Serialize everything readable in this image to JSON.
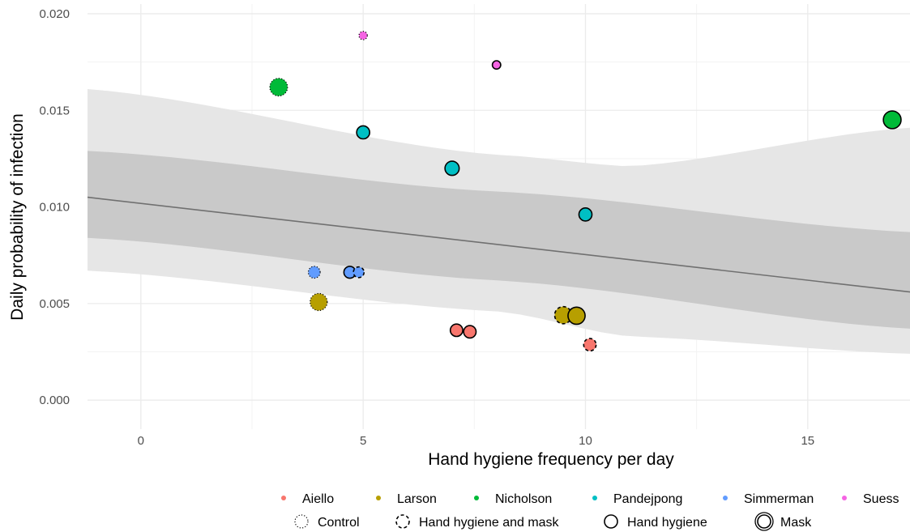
{
  "chart_data": {
    "type": "scatter",
    "title": "",
    "xlabel": "Hand hygiene frequency per day",
    "ylabel": "Daily probability of infection",
    "xlim": [
      -1.2,
      17.3
    ],
    "ylim": [
      -0.0015,
      0.0205
    ],
    "x_ticks": [
      0,
      5,
      10,
      15
    ],
    "x_tick_labels": [
      "0",
      "5",
      "10",
      "15"
    ],
    "y_ticks": [
      0.0,
      0.005,
      0.01,
      0.015,
      0.02
    ],
    "y_tick_labels": [
      "0.000",
      "0.005",
      "0.010",
      "0.015",
      "0.020"
    ],
    "grid": true,
    "legend_position": "bottom",
    "studies": [
      {
        "name": "Aiello",
        "color": "#F8766D"
      },
      {
        "name": "Larson",
        "color": "#B79F00"
      },
      {
        "name": "Nicholson",
        "color": "#00BA38"
      },
      {
        "name": "Pandejpong",
        "color": "#00BFC4"
      },
      {
        "name": "Simmerman",
        "color": "#619CFF"
      },
      {
        "name": "Suess",
        "color": "#F564E3"
      }
    ],
    "arms": [
      {
        "name": "Control",
        "border": "dotted"
      },
      {
        "name": "Hand hygiene and mask",
        "border": "dashed"
      },
      {
        "name": "Hand hygiene",
        "border": "solid"
      },
      {
        "name": "Mask",
        "border": "double"
      }
    ],
    "points": [
      {
        "study": "Aiello",
        "arm": "Hand hygiene",
        "x": 7.1,
        "y": 0.00362,
        "size": 1.3
      },
      {
        "study": "Aiello",
        "arm": "Hand hygiene",
        "x": 7.4,
        "y": 0.00354,
        "size": 1.3
      },
      {
        "study": "Aiello",
        "arm": "Hand hygiene and mask",
        "x": 10.1,
        "y": 0.00287,
        "size": 1.3
      },
      {
        "study": "Larson",
        "arm": "Control",
        "x": 4.0,
        "y": 0.00508,
        "size": 2.1
      },
      {
        "study": "Larson",
        "arm": "Hand hygiene and mask",
        "x": 9.5,
        "y": 0.0044,
        "size": 2.1
      },
      {
        "study": "Larson",
        "arm": "Hand hygiene",
        "x": 9.8,
        "y": 0.00437,
        "size": 2.1
      },
      {
        "study": "Nicholson",
        "arm": "Control",
        "x": 3.1,
        "y": 0.0162,
        "size": 2.2
      },
      {
        "study": "Nicholson",
        "arm": "Hand hygiene",
        "x": 16.9,
        "y": 0.01451,
        "size": 2.2
      },
      {
        "study": "Pandejpong",
        "arm": "Hand hygiene",
        "x": 5.0,
        "y": 0.01386,
        "size": 1.4
      },
      {
        "study": "Pandejpong",
        "arm": "Hand hygiene",
        "x": 7.0,
        "y": 0.012,
        "size": 1.6
      },
      {
        "study": "Pandejpong",
        "arm": "Hand hygiene",
        "x": 10.0,
        "y": 0.00961,
        "size": 1.4
      },
      {
        "study": "Simmerman",
        "arm": "Control",
        "x": 3.9,
        "y": 0.00662,
        "size": 1.2
      },
      {
        "study": "Simmerman",
        "arm": "Hand hygiene",
        "x": 4.7,
        "y": 0.00662,
        "size": 1.2
      },
      {
        "study": "Simmerman",
        "arm": "Hand hygiene and mask",
        "x": 4.9,
        "y": 0.00662,
        "size": 1.0
      },
      {
        "study": "Suess",
        "arm": "Control",
        "x": 5.0,
        "y": 0.01887,
        "size": 0.6
      },
      {
        "study": "Suess",
        "arm": "Hand hygiene",
        "x": 8.0,
        "y": 0.01735,
        "size": 0.6
      }
    ],
    "fit_line": {
      "x": [
        -1.2,
        17.3
      ],
      "y": [
        0.0105,
        0.0056
      ]
    },
    "ci_inner": {
      "x": [
        -1.2,
        8.0,
        17.3
      ],
      "upper": [
        0.0129,
        0.0108,
        0.0087
      ],
      "lower": [
        0.0084,
        0.0062,
        0.0037
      ]
    },
    "ci_outer": {
      "x": [
        -1.2,
        8.0,
        11.0,
        17.3
      ],
      "upper": [
        0.0161,
        0.0127,
        0.0121,
        0.0141
      ],
      "lower": [
        0.0067,
        0.0046,
        0.0033,
        0.0024
      ]
    }
  }
}
